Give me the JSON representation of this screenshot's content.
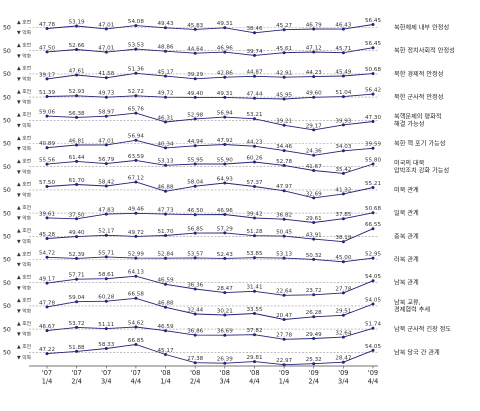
{
  "chart_data": {
    "type": "line",
    "title": "",
    "reference_value": 50,
    "reference_label": "50",
    "legend_up": "호전",
    "legend_down": "악화",
    "x": [
      "'07\n1/4",
      "'07\n2/4",
      "'07\n3/4",
      "'07\n4/4",
      "'08\n1/4",
      "'08\n2/4",
      "'08\n3/4",
      "'08\n4/4",
      "'09\n1/4",
      "'09\n2/4",
      "'09\n3/4",
      "'09\n4/4"
    ],
    "x_top": [
      "'07",
      "'07",
      "'07",
      "'07",
      "'08",
      "'08",
      "'08",
      "'08",
      "'09",
      "'09",
      "'09",
      "'09"
    ],
    "x_bottom": [
      "1/4",
      "2/4",
      "3/4",
      "4/4",
      "1/4",
      "2/4",
      "3/4",
      "4/4",
      "1/4",
      "2/4",
      "3/4",
      "4/4"
    ],
    "series": [
      {
        "name": "북한체제 내부 안정성",
        "values": [
          47.78,
          53.19,
          47.01,
          54.08,
          49.43,
          45.83,
          49.31,
          38.46,
          45.27,
          46.79,
          46.43,
          56.45
        ]
      },
      {
        "name": "북한 정치사회적 안정성",
        "values": [
          47.5,
          52.66,
          47.01,
          53.53,
          48.86,
          44.64,
          46.96,
          39.74,
          45.61,
          47.12,
          45.71,
          56.45
        ]
      },
      {
        "name": "북한 경제적 안정성",
        "values": [
          39.17,
          47.61,
          41.58,
          51.36,
          45.17,
          39.29,
          42.86,
          44.87,
          42.91,
          44.23,
          45.49,
          50.68
        ]
      },
      {
        "name": "북한 군사적 안정성",
        "values": [
          51.39,
          52.93,
          49.73,
          52.72,
          49.72,
          49.4,
          49.31,
          47.44,
          45.95,
          49.6,
          51.04,
          56.42
        ]
      },
      {
        "name": "북핵문제의 평화적 해결 가능성",
        "values": [
          59.06,
          56.38,
          58.97,
          65.76,
          46.31,
          52.98,
          56.94,
          53.21,
          39.21,
          29.17,
          39.93,
          47.3
        ]
      },
      {
        "name": "북한 핵 포기 가능성",
        "values": [
          40.89,
          46.81,
          47.01,
          56.94,
          40.34,
          44.94,
          47.92,
          44.23,
          34.46,
          24.36,
          34.03,
          39.59
        ]
      },
      {
        "name": "미국의 대북 압박조치 강화 가능성",
        "values": [
          55.56,
          61.44,
          56.79,
          63.59,
          53.13,
          55.95,
          55.9,
          60.26,
          52.78,
          41.67,
          35.42,
          55.8
        ]
      },
      {
        "name": "미북 관계",
        "values": [
          57.5,
          61.7,
          58.42,
          67.12,
          46.88,
          58.04,
          64.93,
          57.37,
          47.97,
          32.69,
          41.32,
          55.21
        ]
      },
      {
        "name": "일북 관계",
        "values": [
          39.61,
          37.5,
          47.83,
          49.46,
          47.73,
          46.5,
          46.96,
          39.42,
          36.82,
          29.61,
          37.85,
          50.68
        ]
      },
      {
        "name": "중북 관계",
        "values": [
          45.28,
          49.4,
          52.17,
          49.72,
          51.7,
          56.85,
          57.29,
          51.28,
          50.45,
          43.91,
          38.19,
          66.55
        ]
      },
      {
        "name": "러북 관계",
        "values": [
          54.72,
          52.39,
          55.71,
          52.99,
          52.84,
          53.57,
          52.43,
          53.85,
          53.13,
          50.32,
          45.0,
          52.95
        ]
      },
      {
        "name": "남북 관계",
        "values": [
          49.17,
          57.71,
          58.61,
          64.13,
          46.59,
          36.36,
          28.47,
          31.41,
          22.64,
          23.72,
          27.78,
          54.05
        ]
      },
      {
        "name": "남북 교류, 경제협력 추세",
        "values": [
          47.78,
          59.04,
          60.28,
          66.58,
          46.88,
          32.44,
          30.21,
          33.55,
          20.47,
          26.28,
          29.51,
          54.05
        ]
      },
      {
        "name": "남북 군사적 긴장 정도",
        "values": [
          46.67,
          53.72,
          51.11,
          54.62,
          46.59,
          36.86,
          36.69,
          37.82,
          27.78,
          29.49,
          32.64,
          51.74
        ]
      },
      {
        "name": "남북 당국 간 관계",
        "values": [
          47.22,
          51.88,
          58.33,
          66.85,
          45.17,
          27.38,
          26.39,
          29.81,
          22.97,
          25.32,
          28.47,
          54.05
        ]
      }
    ]
  }
}
